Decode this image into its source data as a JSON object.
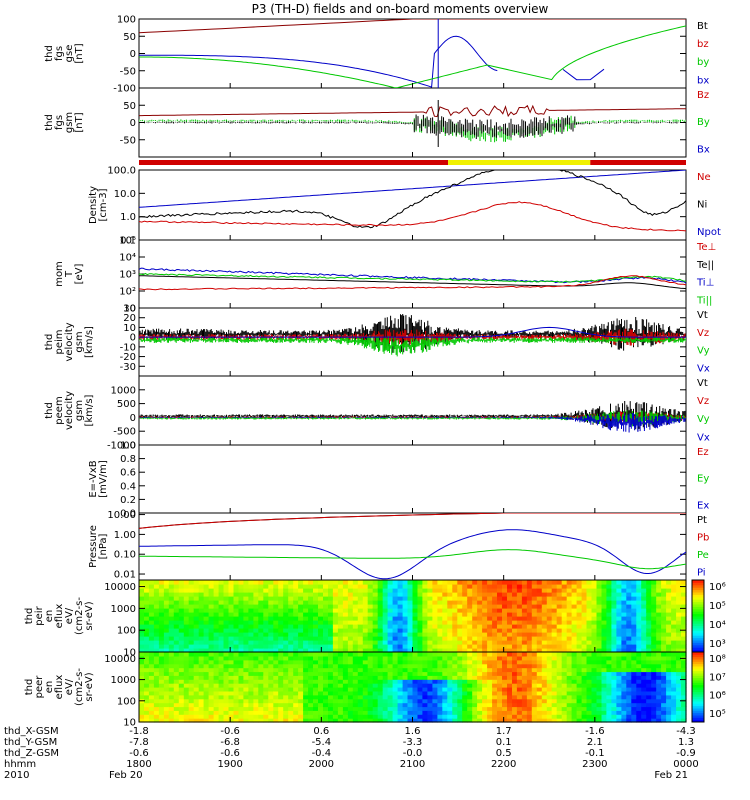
{
  "title": "P3 (TH-D) fields and on-board moments overview",
  "colors": {
    "black": "#000000",
    "red": "#d00000",
    "green": "#00c800",
    "blue": "#0000c8",
    "yellow": "#f0f000",
    "darkred": "#8b0000"
  },
  "chart_data": {
    "type": "line",
    "panels": [
      {
        "ylabel": [
          "thd",
          "fgs",
          "gse",
          "[nT]"
        ],
        "scale": "linear",
        "ylim": [
          -100,
          100
        ],
        "yticks": [
          "100",
          "50",
          "0",
          "-50",
          "-100"
        ],
        "legend": [
          {
            "text": "Bt",
            "color": "black"
          },
          {
            "text": "bz",
            "color": "red"
          },
          {
            "text": "by",
            "color": "green"
          },
          {
            "text": "bx",
            "color": "blue"
          }
        ]
      },
      {
        "ylabel": [
          "thd",
          "fgs",
          "gsm",
          "[nT]"
        ],
        "scale": "linear",
        "ylim": [
          -100,
          100
        ],
        "yticks": [
          "50",
          "0",
          "-50"
        ],
        "legend": [
          {
            "text": "Bz",
            "color": "red"
          },
          {
            "text": "By",
            "color": "green"
          },
          {
            "text": "Bx",
            "color": "blue"
          }
        ]
      },
      {
        "ylabel": [
          "Density",
          "[cm-3]"
        ],
        "scale": "log",
        "ylim": [
          0.1,
          100
        ],
        "yticks": [
          "100.0",
          "10.0",
          "1.0",
          "0.1"
        ],
        "legend": [
          {
            "text": "Ne",
            "color": "red"
          },
          {
            "text": "Ni",
            "color": "black"
          },
          {
            "text": "Npot",
            "color": "blue"
          }
        ]
      },
      {
        "ylabel": [
          "mom",
          "T",
          "[eV]"
        ],
        "scale": "log",
        "ylim": [
          10,
          100000
        ],
        "yticks": [
          "10⁵",
          "10⁴",
          "10³",
          "10²",
          "10"
        ],
        "legend": [
          {
            "text": "Te⊥",
            "color": "red"
          },
          {
            "text": "Te||",
            "color": "black"
          },
          {
            "text": "Ti⊥",
            "color": "blue"
          },
          {
            "text": "Ti||",
            "color": "green"
          }
        ]
      },
      {
        "ylabel": [
          "thd",
          "peim",
          "velocity",
          "gsm",
          "[km/s]"
        ],
        "scale": "linear",
        "ylim": [
          -40,
          30
        ],
        "yticks": [
          "30",
          "20",
          "10",
          "0",
          "-10",
          "-20",
          "-30"
        ],
        "legend": [
          {
            "text": "Vt",
            "color": "black"
          },
          {
            "text": "Vz",
            "color": "red"
          },
          {
            "text": "Vy",
            "color": "green"
          },
          {
            "text": "Vx",
            "color": "blue"
          }
        ]
      },
      {
        "ylabel": [
          "thd",
          "peem",
          "velocity",
          "gsm",
          "[km/s]"
        ],
        "scale": "linear",
        "ylim": [
          -1000,
          1500
        ],
        "yticks": [
          "1000",
          "500",
          "0",
          "-500",
          "-1000"
        ],
        "legend": [
          {
            "text": "Vt",
            "color": "black"
          },
          {
            "text": "Vz",
            "color": "red"
          },
          {
            "text": "Vy",
            "color": "green"
          },
          {
            "text": "Vx",
            "color": "blue"
          }
        ]
      },
      {
        "ylabel": [
          "E=-VxB",
          "[mV/m]"
        ],
        "scale": "linear",
        "ylim": [
          0,
          1
        ],
        "yticks": [
          "1.0",
          "0.8",
          "0.6",
          "0.4",
          "0.2",
          "0.0"
        ],
        "legend": [
          {
            "text": "Ez",
            "color": "red"
          },
          {
            "text": "Ey",
            "color": "green"
          },
          {
            "text": "Ex",
            "color": "blue"
          }
        ]
      },
      {
        "ylabel": [
          "Pressure",
          "[nPa]"
        ],
        "scale": "log",
        "ylim": [
          0.005,
          12
        ],
        "yticks": [
          "10.00",
          "1.00",
          "0.10",
          "0.01"
        ],
        "legend": [
          {
            "text": "Pt",
            "color": "black"
          },
          {
            "text": "Pb",
            "color": "red"
          },
          {
            "text": "Pe",
            "color": "green"
          },
          {
            "text": "Pi",
            "color": "blue"
          }
        ]
      },
      {
        "ylabel": [
          "thd",
          "peir",
          "en",
          "eflux",
          "eV/",
          "(cm2-s-",
          "sr-eV)"
        ],
        "scale": "log",
        "ylim": [
          10,
          20000
        ],
        "yticks": [
          "10000",
          "1000",
          "100",
          "10"
        ],
        "colorbar": [
          "10⁶",
          "10⁵",
          "10⁴",
          "10³"
        ]
      },
      {
        "ylabel": [
          "thd",
          "peer",
          "en",
          "eflux",
          "eV/",
          "(cm2-s-",
          "sr-eV)"
        ],
        "scale": "log",
        "ylim": [
          10,
          20000
        ],
        "yticks": [
          "10000",
          "1000",
          "100",
          "10"
        ],
        "colorbar": [
          "10⁸",
          "10⁷",
          "10⁶",
          "10⁵"
        ]
      }
    ],
    "x_ticks": [
      {
        "X": "-1.8",
        "Y": "-7.8",
        "Z": "-0.6",
        "hhmm": "1800",
        "date": "Feb 20"
      },
      {
        "X": "-0.6",
        "Y": "-6.8",
        "Z": "-0.6",
        "hhmm": "1900",
        "date": ""
      },
      {
        "X": "0.6",
        "Y": "-5.4",
        "Z": "-0.4",
        "hhmm": "2000",
        "date": ""
      },
      {
        "X": "1.6",
        "Y": "-3.3",
        "Z": "-0.0",
        "hhmm": "2100",
        "date": ""
      },
      {
        "X": "1.7",
        "Y": "0.1",
        "Z": "0.5",
        "hhmm": "2200",
        "date": ""
      },
      {
        "X": "-1.6",
        "Y": "2.1",
        "Z": "-0.1",
        "hhmm": "2300",
        "date": ""
      },
      {
        "X": "-4.3",
        "Y": "1.3",
        "Z": "-0.9",
        "hhmm": "0000",
        "date": "Feb 21"
      }
    ],
    "x_row_labels": [
      "thd_X-GSM",
      "thd_Y-GSM",
      "thd_Z-GSM",
      "hhmm",
      "2010"
    ]
  }
}
